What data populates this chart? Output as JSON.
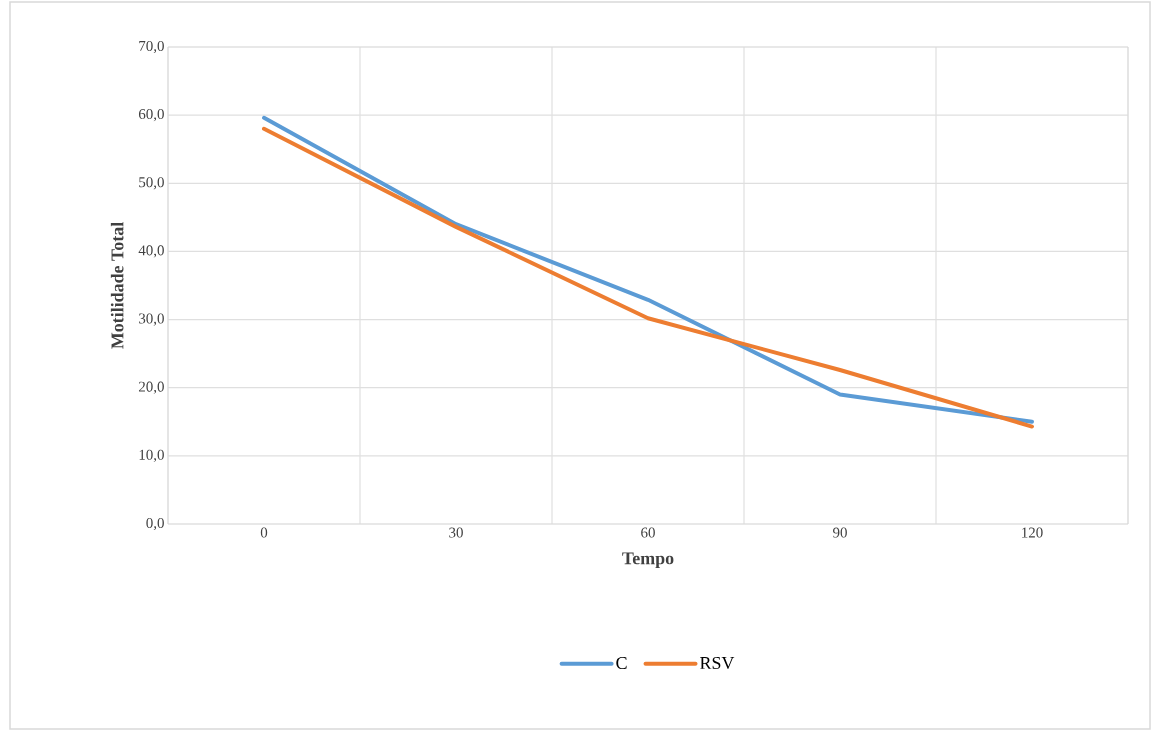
{
  "chart_data": {
    "type": "line",
    "xlabel": "Tempo",
    "ylabel": "Motilidade Total",
    "categories": [
      "0",
      "30",
      "60",
      "90",
      "120"
    ],
    "series": [
      {
        "name": "C",
        "color": "#5b9bd5",
        "values": [
          59.6,
          44.0,
          32.9,
          19.0,
          15.0
        ]
      },
      {
        "name": "RSV",
        "color": "#ed7d31",
        "values": [
          58.0,
          43.6,
          30.2,
          22.6,
          14.3
        ]
      }
    ],
    "ylim": [
      0,
      70
    ],
    "yticks": [
      {
        "value": 0,
        "label": "0,0"
      },
      {
        "value": 10,
        "label": "10,0"
      },
      {
        "value": 20,
        "label": "20,0"
      },
      {
        "value": 30,
        "label": "30,0"
      },
      {
        "value": 40,
        "label": "40,0"
      },
      {
        "value": 50,
        "label": "50,0"
      },
      {
        "value": 60,
        "label": "60,0"
      },
      {
        "value": 70,
        "label": "70,0"
      }
    ],
    "grid": true,
    "legend": "bottom",
    "marker": "none",
    "line_style": "solid"
  }
}
